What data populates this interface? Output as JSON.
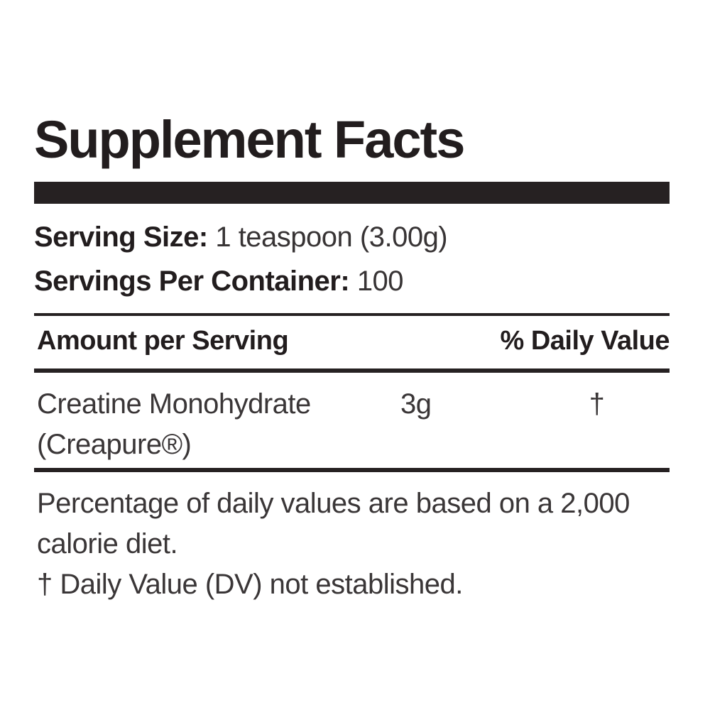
{
  "panel": {
    "title": "Supplement Facts",
    "serving": {
      "size_label": "Serving Size:",
      "size_value": "1 teaspoon (3.00g)",
      "per_container_label": "Servings Per Container:",
      "per_container_value": "100"
    },
    "table": {
      "headers": {
        "amount": "Amount per Serving",
        "daily_value": "% Daily Value"
      },
      "rows": [
        {
          "name_lines": [
            "Creatine Monohydrate",
            "(Creapure®)"
          ],
          "amount": "3g",
          "daily_value": "†"
        }
      ]
    },
    "footnotes": {
      "percentage": "Percentage of daily values are based on a 2,000 calorie diet.",
      "dagger": "† Daily Value (DV) not established."
    },
    "colors": {
      "text_primary": "#221d1e",
      "text_secondary": "#3a3637",
      "rule": "#262122",
      "background": "#ffffff"
    }
  }
}
